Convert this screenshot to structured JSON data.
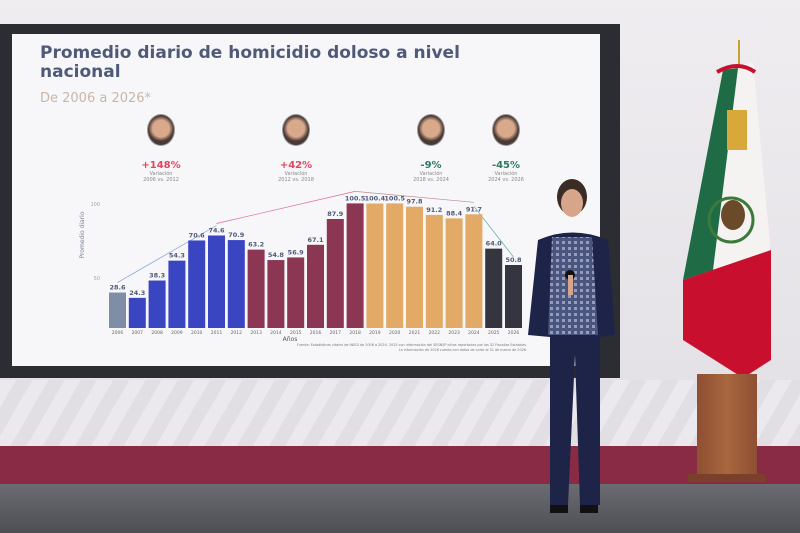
{
  "slide": {
    "title": "Promedio diario de homicidio doloso a nivel nacional",
    "subtitle": "De 2006 a 2026*",
    "presidents": [
      {
        "change": "+148%",
        "label": "Variación",
        "period": "2006 vs. 2012",
        "color": "#e8435c"
      },
      {
        "change": "+42%",
        "label": "Variación",
        "period": "2012 vs. 2018",
        "color": "#e8435c"
      },
      {
        "change": "-9%",
        "label": "Variación",
        "period": "2018 vs. 2024",
        "color": "#2f7a5a"
      },
      {
        "change": "-45%",
        "label": "Variación",
        "period": "2024 vs. 2026",
        "color": "#2f7a5a"
      }
    ],
    "footnote_1": "Fuente: Estadísticas vitales de INEGI de 2006 a 2024. 2025 con información del SESNSP cifras reportadas por las 32 Fiscalías Estatales.",
    "footnote_2": "La información de 2026 cuenta con datos de corte al 31 de marzo de 2026."
  },
  "chart_data": {
    "type": "bar",
    "title": "Promedio diario de homicidio doloso a nivel nacional",
    "subtitle": "De 2006 a 2026*",
    "xlabel": "Años",
    "ylabel": "Promedio diario",
    "ylim": [
      0,
      100
    ],
    "yticks": [
      "50",
      "100"
    ],
    "grid": false,
    "categories": [
      "2006",
      "2007",
      "2008",
      "2009",
      "2010",
      "2011",
      "2012",
      "2013",
      "2014",
      "2015",
      "2016",
      "2017",
      "2018",
      "2019",
      "2020",
      "2021",
      "2022",
      "2023",
      "2024",
      "2025",
      "2026"
    ],
    "values": [
      28.6,
      24.3,
      38.3,
      54.3,
      70.6,
      74.6,
      70.9,
      63.2,
      54.8,
      56.9,
      67.1,
      87.9,
      100.5,
      100.4,
      100.5,
      97.8,
      91.2,
      88.4,
      91.7,
      64.0,
      50.8
    ],
    "labels": [
      "28.6",
      "24.3",
      "38.3",
      "54.3",
      "70.6",
      "74.6",
      "70.9",
      "63.2",
      "54.8",
      "56.9",
      "67.1",
      "87.9",
      "100.5",
      "100.4",
      "100.5",
      "97.8",
      "91.2",
      "88.4",
      "91.7",
      "64.0",
      "50.8"
    ],
    "bar_colors": [
      "#7f8ea6",
      "#3a45c2",
      "#3a45c2",
      "#3a45c2",
      "#3a45c2",
      "#3a45c2",
      "#3a45c2",
      "#8b3652",
      "#8b3652",
      "#8b3652",
      "#8b3652",
      "#8b3652",
      "#8b3652",
      "#e2aa66",
      "#e2aa66",
      "#e2aa66",
      "#e2aa66",
      "#e2aa66",
      "#e2aa66",
      "#34353f",
      "#34353f"
    ]
  },
  "colors": {
    "flag_green": "#1f6b45",
    "flag_red": "#c8102e",
    "stage_band": "#8a2b45"
  }
}
